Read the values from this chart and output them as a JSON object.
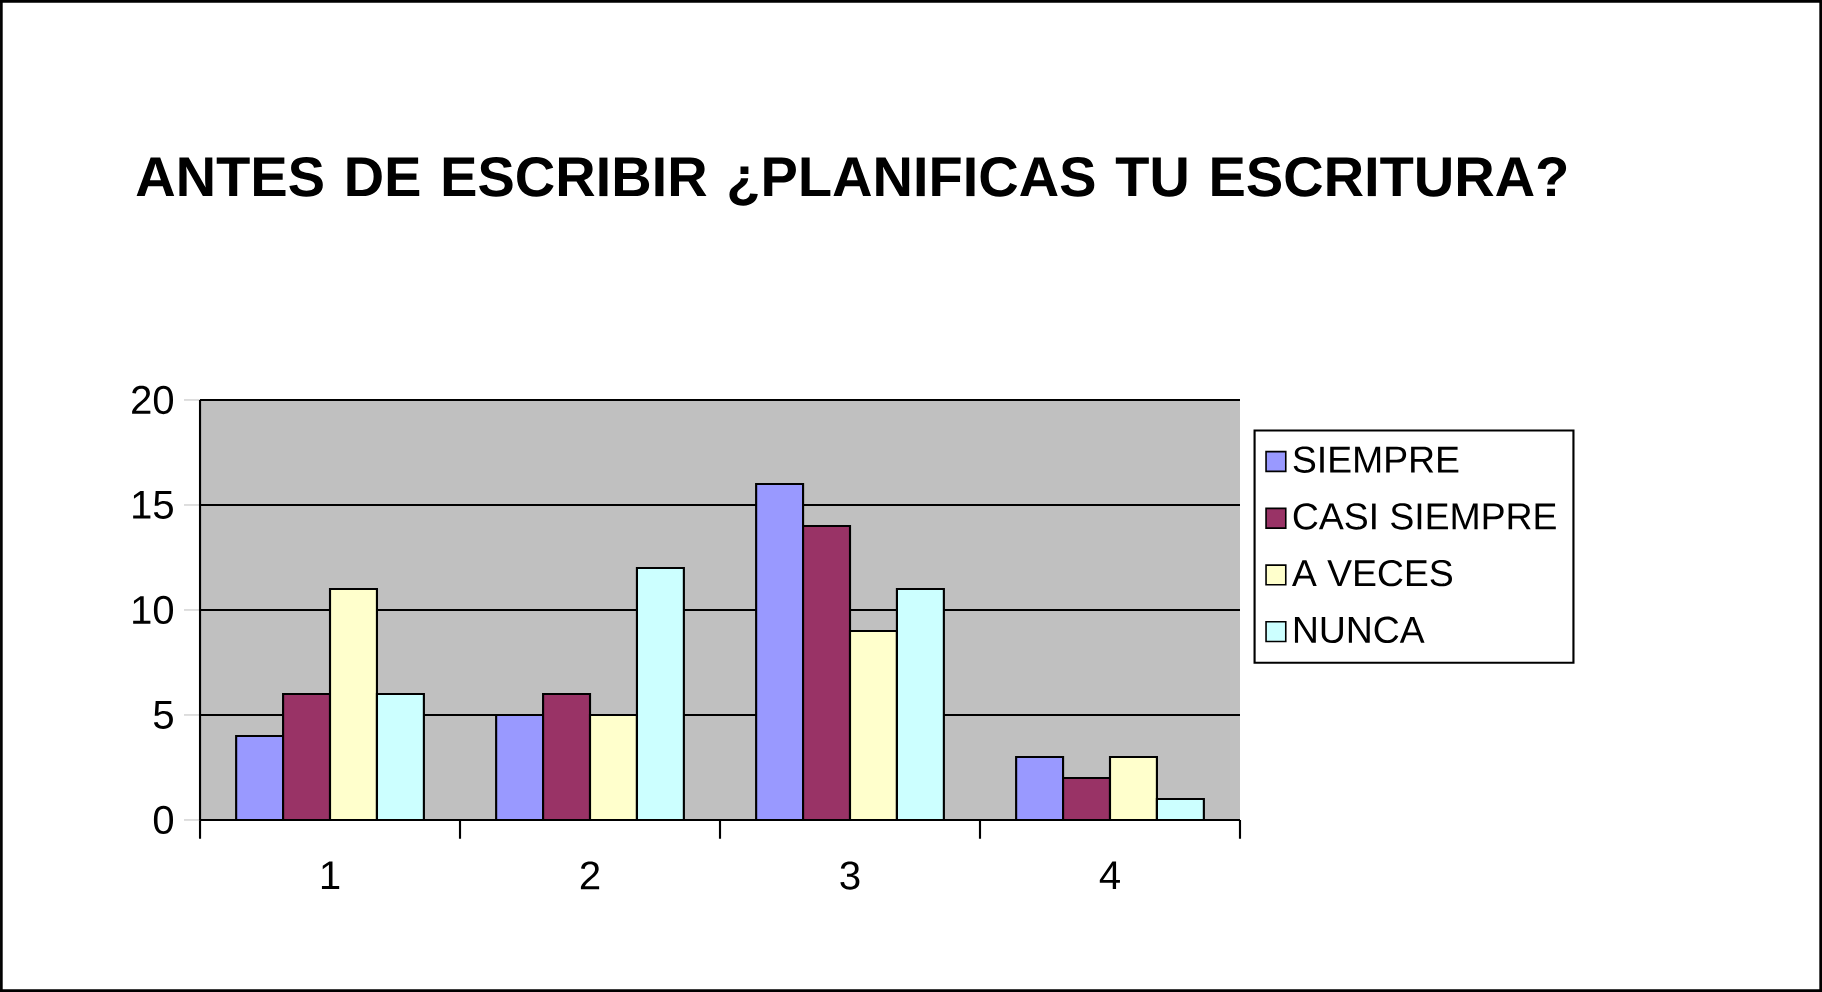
{
  "chart_data": {
    "type": "bar",
    "title": "ANTES DE ESCRIBIR ¿PLANIFICAS TU ESCRITURA?",
    "categories": [
      "1",
      "2",
      "3",
      "4"
    ],
    "series": [
      {
        "name": "SIEMPRE",
        "color": "#9999ff",
        "values": [
          4,
          5,
          16,
          3
        ]
      },
      {
        "name": "CASI SIEMPRE",
        "color": "#993366",
        "values": [
          6,
          6,
          14,
          2
        ]
      },
      {
        "name": "A  VECES",
        "color": "#ffffcc",
        "values": [
          11,
          5,
          9,
          3
        ]
      },
      {
        "name": "NUNCA",
        "color": "#ccffff",
        "values": [
          6,
          12,
          11,
          1
        ]
      }
    ],
    "ylim": [
      0,
      20
    ],
    "yticks": [
      0,
      5,
      10,
      15,
      20
    ],
    "grid": "y",
    "legend": "right"
  }
}
